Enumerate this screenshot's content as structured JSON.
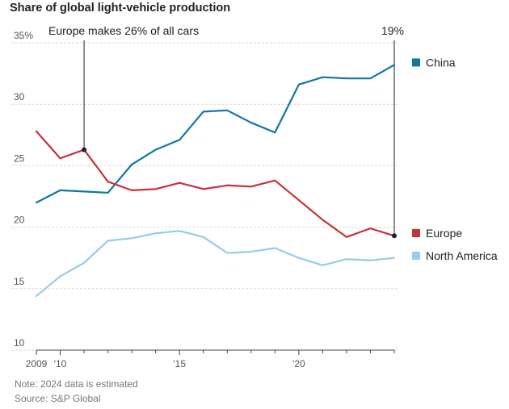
{
  "title": "Share of global light-vehicle production",
  "note": "Note: 2024 data is estimated",
  "source": "Source: S&P Global",
  "colors": {
    "china": "#1077a4",
    "europe": "#c8313a",
    "north_america": "#97cbe9",
    "grid": "#d9d9d9",
    "annotation": "#222222"
  },
  "chart_data": {
    "type": "line",
    "title": "Share of global light-vehicle production",
    "xlabel": "",
    "ylabel": "",
    "x": [
      2009,
      2010,
      2011,
      2012,
      2013,
      2014,
      2015,
      2016,
      2017,
      2018,
      2019,
      2020,
      2021,
      2022,
      2023,
      2024
    ],
    "ylim": [
      10,
      35
    ],
    "xlim": [
      2009,
      2024
    ],
    "yticks": [
      10,
      15,
      20,
      25,
      30,
      35
    ],
    "ytick_labels": [
      "10",
      "15",
      "20",
      "25",
      "30",
      "35%"
    ],
    "xticks": [
      2009,
      2010,
      2015,
      2020
    ],
    "xtick_labels": [
      "2009",
      "'10",
      "'15",
      "'20"
    ],
    "grid": true,
    "series": [
      {
        "name": "China",
        "key": "china",
        "values": [
          22.0,
          23.0,
          22.9,
          22.8,
          25.1,
          26.3,
          27.1,
          29.4,
          29.5,
          28.5,
          27.7,
          31.6,
          32.2,
          32.1,
          32.1,
          33.2
        ]
      },
      {
        "name": "Europe",
        "key": "europe",
        "values": [
          27.8,
          25.6,
          26.3,
          23.7,
          23.0,
          23.1,
          23.6,
          23.1,
          23.4,
          23.3,
          23.8,
          22.2,
          20.6,
          19.2,
          19.9,
          19.3
        ]
      },
      {
        "name": "North America",
        "key": "north_america",
        "values": [
          14.4,
          16.0,
          17.1,
          18.9,
          19.1,
          19.5,
          19.7,
          19.2,
          17.9,
          18.0,
          18.3,
          17.5,
          16.9,
          17.4,
          17.3,
          17.5
        ]
      }
    ],
    "legend": [
      {
        "label": "China",
        "key": "china"
      },
      {
        "label": "Europe",
        "key": "europe"
      },
      {
        "label": "North America",
        "key": "north_america"
      }
    ],
    "annotations": [
      {
        "text": "Europe makes 26% of all cars",
        "series": "europe",
        "x": 2011,
        "y": 26.3
      },
      {
        "text": "19%",
        "series": "europe",
        "x": 2024,
        "y": 19.3
      }
    ]
  }
}
